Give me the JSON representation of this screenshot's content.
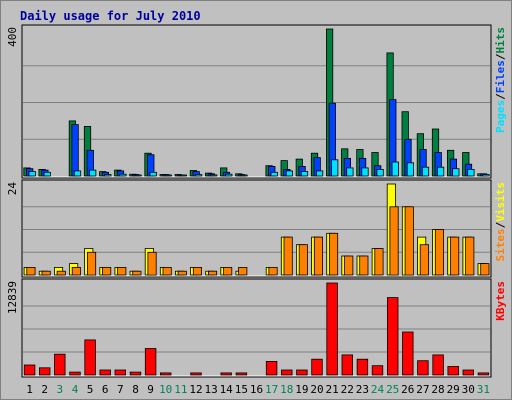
{
  "colors": {
    "background": "#c0c0c0",
    "panel": "#c0c0c0",
    "grid": "#808080",
    "title": "#0000a0",
    "hits": "#008040",
    "files": "#0040ff",
    "pages": "#00e0ff",
    "visits": "#ffff00",
    "sites": "#ff8000",
    "kbytes": "#ff0000",
    "weekend_label": "#00805c"
  },
  "chart_data": {
    "type": "bar",
    "title": "Daily usage for July 2010",
    "categories": [
      "1",
      "2",
      "3",
      "4",
      "5",
      "6",
      "7",
      "8",
      "9",
      "10",
      "11",
      "12",
      "13",
      "14",
      "15",
      "16",
      "17",
      "18",
      "19",
      "20",
      "21",
      "22",
      "23",
      "24",
      "25",
      "26",
      "27",
      "28",
      "29",
      "30",
      "31"
    ],
    "weekend_days": [
      "3",
      "4",
      "10",
      "11",
      "17",
      "18",
      "24",
      "25",
      "31"
    ],
    "panels": [
      {
        "id": "requests",
        "max_label": "400",
        "ylim": [
          0,
          400
        ],
        "legend": [
          {
            "text": "Pages",
            "color": "#00e0ff"
          },
          {
            "text": "/",
            "color": "#000000"
          },
          {
            "text": "Files",
            "color": "#0040ff"
          },
          {
            "text": "/",
            "color": "#000000"
          },
          {
            "text": "Hits",
            "color": "#008040"
          }
        ],
        "series": [
          {
            "name": "Hits",
            "color": "#008040",
            "values": [
              22,
              18,
              0,
              150,
              135,
              12,
              16,
              5,
              62,
              4,
              4,
              15,
              8,
              22,
              6,
              0,
              28,
              42,
              46,
              62,
              400,
              74,
              72,
              64,
              335,
              175,
              115,
              128,
              70,
              64,
              6
            ]
          },
          {
            "name": "Files",
            "color": "#0040ff",
            "values": [
              20,
              16,
              0,
              140,
              70,
              10,
              14,
              4,
              58,
              4,
              3,
              12,
              6,
              10,
              4,
              0,
              26,
              18,
              26,
              50,
              198,
              48,
              48,
              28,
              208,
              100,
              72,
              64,
              46,
              32,
              6
            ]
          },
          {
            "name": "Pages",
            "color": "#00e0ff",
            "values": [
              12,
              10,
              0,
              14,
              16,
              4,
              5,
              2,
              10,
              2,
              2,
              4,
              3,
              5,
              2,
              0,
              10,
              14,
              12,
              14,
              44,
              22,
              22,
              18,
              38,
              36,
              24,
              24,
              20,
              18,
              4
            ]
          }
        ]
      },
      {
        "id": "visits",
        "max_label": "24",
        "ylim": [
          0,
          24
        ],
        "legend": [
          {
            "text": "Sites",
            "color": "#ff8000"
          },
          {
            "text": "/",
            "color": "#000000"
          },
          {
            "text": "Visits",
            "color": "#ffff00"
          }
        ],
        "series": [
          {
            "name": "Visits",
            "color": "#ffff00",
            "values": [
              2,
              1,
              2,
              3,
              7,
              2,
              2,
              1,
              7,
              2,
              1,
              2,
              1,
              2,
              1,
              0,
              2,
              10,
              8,
              10,
              11,
              5,
              5,
              7,
              24,
              18,
              10,
              12,
              10,
              10,
              3
            ]
          },
          {
            "name": "Sites",
            "color": "#ff8000",
            "values": [
              2,
              1,
              1,
              2,
              6,
              2,
              2,
              1,
              6,
              2,
              1,
              2,
              1,
              2,
              2,
              0,
              2,
              10,
              8,
              10,
              11,
              5,
              5,
              7,
              18,
              18,
              8,
              12,
              10,
              10,
              3
            ]
          }
        ]
      },
      {
        "id": "kbytes",
        "max_label": "12839",
        "ylim": [
          0,
          12839
        ],
        "legend": [
          {
            "text": "KBytes",
            "color": "#ff0000"
          }
        ],
        "series": [
          {
            "name": "KBytes",
            "color": "#ff0000",
            "values": [
              1400,
              1000,
              2900,
              400,
              4900,
              700,
              700,
              400,
              3700,
              300,
              0,
              300,
              0,
              300,
              300,
              0,
              1900,
              700,
              700,
              2200,
              12839,
              2800,
              2200,
              1300,
              10800,
              6000,
              2000,
              2800,
              1200,
              700,
              300
            ]
          }
        ]
      }
    ],
    "grid": true
  }
}
